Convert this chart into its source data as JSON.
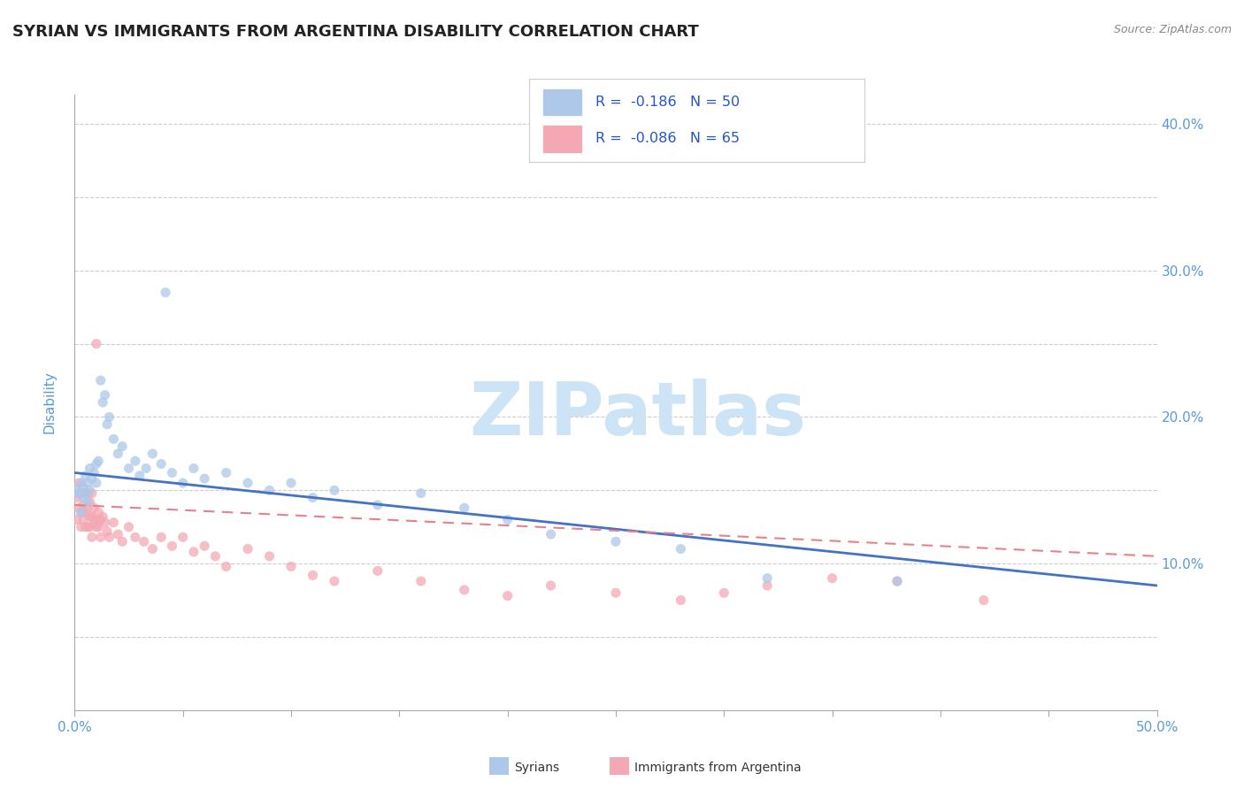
{
  "title": "SYRIAN VS IMMIGRANTS FROM ARGENTINA DISABILITY CORRELATION CHART",
  "source": "Source: ZipAtlas.com",
  "ylabel": "Disability",
  "xlim": [
    0.0,
    0.5
  ],
  "ylim": [
    0.0,
    0.42
  ],
  "syrians_R": -0.186,
  "syrians_N": 50,
  "argentina_R": -0.086,
  "argentina_N": 65,
  "syrians_color": "#adc8e8",
  "argentina_color": "#f4a8b4",
  "syrians_line_color": "#4472c4",
  "argentina_line_color": "#e8808a",
  "watermark_text": "ZIPatlas",
  "watermark_color": "#cce4f5",
  "background_color": "#ffffff",
  "grid_color": "#cccccc",
  "tick_color": "#5b9bd5",
  "legend_R_color": "#2255cc",
  "title_color": "#222222",
  "source_color": "#888888",
  "title_fontsize": 13,
  "syrians_x": [
    0.001,
    0.002,
    0.003,
    0.003,
    0.004,
    0.004,
    0.005,
    0.005,
    0.006,
    0.006,
    0.007,
    0.007,
    0.008,
    0.009,
    0.01,
    0.01,
    0.011,
    0.012,
    0.013,
    0.014,
    0.015,
    0.016,
    0.018,
    0.02,
    0.022,
    0.025,
    0.028,
    0.03,
    0.033,
    0.036,
    0.04,
    0.045,
    0.05,
    0.055,
    0.06,
    0.07,
    0.08,
    0.09,
    0.1,
    0.11,
    0.12,
    0.14,
    0.16,
    0.18,
    0.2,
    0.22,
    0.25,
    0.28,
    0.32,
    0.38
  ],
  "syrians_y": [
    0.15,
    0.148,
    0.155,
    0.135,
    0.145,
    0.152,
    0.148,
    0.16,
    0.142,
    0.155,
    0.165,
    0.15,
    0.158,
    0.162,
    0.155,
    0.168,
    0.17,
    0.225,
    0.21,
    0.215,
    0.195,
    0.2,
    0.185,
    0.175,
    0.18,
    0.165,
    0.17,
    0.16,
    0.165,
    0.175,
    0.168,
    0.162,
    0.155,
    0.165,
    0.158,
    0.162,
    0.155,
    0.15,
    0.155,
    0.145,
    0.15,
    0.14,
    0.148,
    0.138,
    0.13,
    0.12,
    0.115,
    0.11,
    0.09,
    0.088
  ],
  "syrians_outlier_x": [
    0.042
  ],
  "syrians_outlier_y": [
    0.285
  ],
  "argentina_x": [
    0.001,
    0.001,
    0.002,
    0.002,
    0.003,
    0.003,
    0.003,
    0.004,
    0.004,
    0.004,
    0.005,
    0.005,
    0.005,
    0.006,
    0.006,
    0.006,
    0.007,
    0.007,
    0.007,
    0.008,
    0.008,
    0.008,
    0.009,
    0.009,
    0.01,
    0.01,
    0.011,
    0.011,
    0.012,
    0.012,
    0.013,
    0.014,
    0.015,
    0.016,
    0.018,
    0.02,
    0.022,
    0.025,
    0.028,
    0.032,
    0.036,
    0.04,
    0.045,
    0.05,
    0.055,
    0.06,
    0.065,
    0.07,
    0.08,
    0.09,
    0.1,
    0.11,
    0.12,
    0.14,
    0.16,
    0.18,
    0.2,
    0.22,
    0.25,
    0.28,
    0.3,
    0.32,
    0.35,
    0.38,
    0.42
  ],
  "argentina_y": [
    0.13,
    0.145,
    0.138,
    0.155,
    0.148,
    0.135,
    0.125,
    0.14,
    0.148,
    0.13,
    0.135,
    0.148,
    0.125,
    0.138,
    0.148,
    0.125,
    0.132,
    0.142,
    0.125,
    0.132,
    0.148,
    0.118,
    0.128,
    0.138,
    0.13,
    0.125,
    0.135,
    0.125,
    0.13,
    0.118,
    0.132,
    0.128,
    0.122,
    0.118,
    0.128,
    0.12,
    0.115,
    0.125,
    0.118,
    0.115,
    0.11,
    0.118,
    0.112,
    0.118,
    0.108,
    0.112,
    0.105,
    0.098,
    0.11,
    0.105,
    0.098,
    0.092,
    0.088,
    0.095,
    0.088,
    0.082,
    0.078,
    0.085,
    0.08,
    0.075,
    0.08,
    0.085,
    0.09,
    0.088,
    0.075
  ],
  "argentina_outlier_x": [
    0.01
  ],
  "argentina_outlier_y": [
    0.25
  ],
  "syrians_trendline_x": [
    0.0,
    0.5
  ],
  "syrians_trendline_y": [
    0.162,
    0.085
  ],
  "argentina_trendline_x": [
    0.0,
    0.5
  ],
  "argentina_trendline_y": [
    0.14,
    0.105
  ]
}
